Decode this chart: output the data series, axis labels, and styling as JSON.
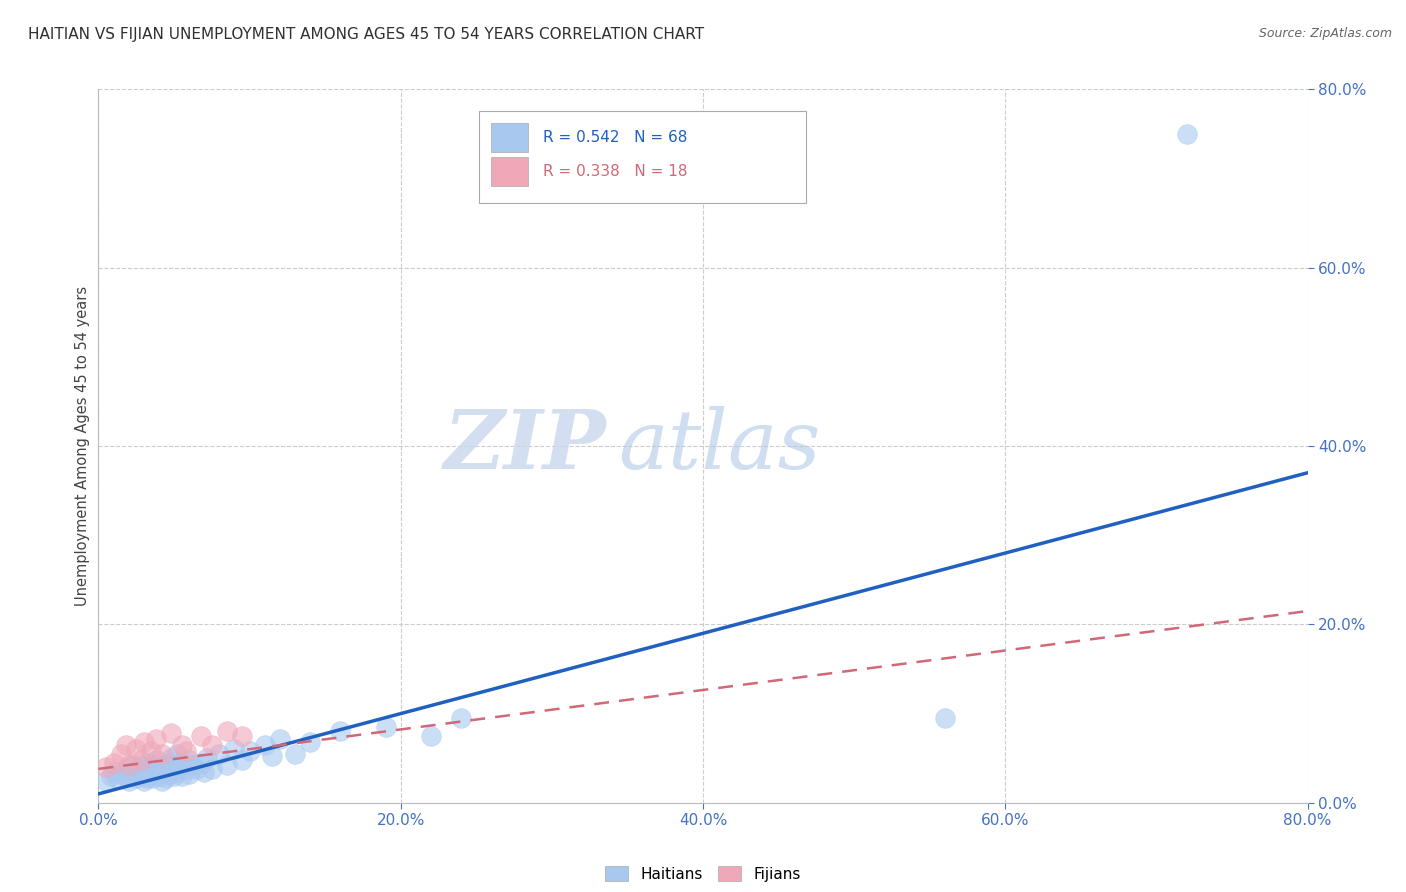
{
  "title": "HAITIAN VS FIJIAN UNEMPLOYMENT AMONG AGES 45 TO 54 YEARS CORRELATION CHART",
  "source": "Source: ZipAtlas.com",
  "ylabel": "Unemployment Among Ages 45 to 54 years",
  "xlim": [
    0.0,
    0.8
  ],
  "ylim": [
    0.0,
    0.8
  ],
  "legend_r_haiti": "R = 0.542",
  "legend_n_haiti": "N = 68",
  "legend_r_fiji": "R = 0.338",
  "legend_n_fiji": "N = 18",
  "haiti_color": "#a8c8f0",
  "fiji_color": "#f0a8b8",
  "haiti_line_color": "#2060c0",
  "fiji_line_color": "#d06878",
  "watermark_zip": "ZIP",
  "watermark_atlas": "atlas",
  "background_color": "#ffffff",
  "grid_color": "#cccccc",
  "title_color": "#303030",
  "tick_color": "#4472c4",
  "haiti_scatter_x": [
    0.005,
    0.008,
    0.01,
    0.012,
    0.015,
    0.018,
    0.02,
    0.022,
    0.022,
    0.025,
    0.025,
    0.028,
    0.028,
    0.03,
    0.03,
    0.03,
    0.03,
    0.032,
    0.032,
    0.033,
    0.033,
    0.035,
    0.035,
    0.035,
    0.036,
    0.038,
    0.038,
    0.04,
    0.04,
    0.042,
    0.042,
    0.043,
    0.045,
    0.045,
    0.047,
    0.047,
    0.048,
    0.05,
    0.05,
    0.052,
    0.052,
    0.055,
    0.055,
    0.058,
    0.06,
    0.06,
    0.062,
    0.065,
    0.068,
    0.07,
    0.072,
    0.075,
    0.08,
    0.085,
    0.09,
    0.095,
    0.1,
    0.11,
    0.115,
    0.12,
    0.13,
    0.14,
    0.16,
    0.19,
    0.22,
    0.24,
    0.56,
    0.72
  ],
  "haiti_scatter_y": [
    0.025,
    0.03,
    0.035,
    0.028,
    0.032,
    0.038,
    0.025,
    0.03,
    0.042,
    0.028,
    0.035,
    0.032,
    0.04,
    0.025,
    0.03,
    0.035,
    0.04,
    0.028,
    0.038,
    0.032,
    0.045,
    0.03,
    0.035,
    0.042,
    0.028,
    0.038,
    0.048,
    0.03,
    0.038,
    0.025,
    0.035,
    0.042,
    0.028,
    0.04,
    0.032,
    0.045,
    0.05,
    0.03,
    0.042,
    0.035,
    0.055,
    0.03,
    0.045,
    0.038,
    0.032,
    0.048,
    0.042,
    0.038,
    0.045,
    0.035,
    0.05,
    0.038,
    0.055,
    0.042,
    0.06,
    0.048,
    0.058,
    0.065,
    0.052,
    0.072,
    0.055,
    0.068,
    0.08,
    0.085,
    0.075,
    0.095,
    0.095,
    0.75
  ],
  "fiji_scatter_x": [
    0.005,
    0.01,
    0.015,
    0.018,
    0.02,
    0.025,
    0.028,
    0.03,
    0.035,
    0.038,
    0.042,
    0.048,
    0.055,
    0.058,
    0.068,
    0.075,
    0.085,
    0.095
  ],
  "fiji_scatter_y": [
    0.04,
    0.045,
    0.055,
    0.065,
    0.042,
    0.06,
    0.048,
    0.068,
    0.058,
    0.072,
    0.055,
    0.078,
    0.065,
    0.058,
    0.075,
    0.065,
    0.08,
    0.075
  ],
  "haiti_trend_x": [
    0.0,
    0.8
  ],
  "haiti_trend_y": [
    0.01,
    0.37
  ],
  "fiji_trend_x": [
    0.0,
    0.8
  ],
  "fiji_trend_y": [
    0.038,
    0.215
  ]
}
